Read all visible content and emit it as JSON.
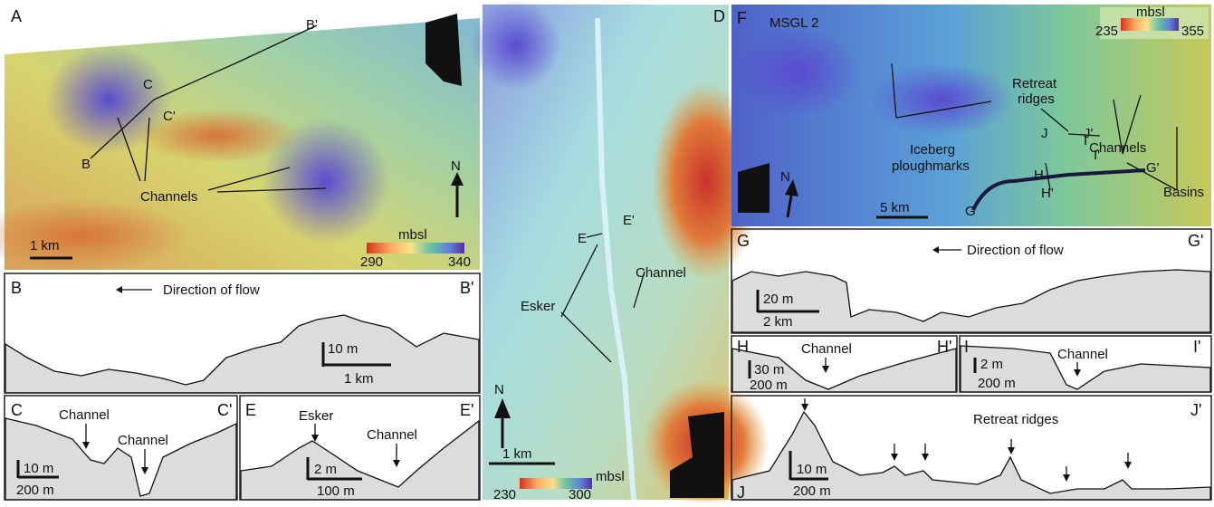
{
  "panel_a": {
    "letter": "A",
    "labels": [
      "B'",
      "C",
      "C'",
      "B",
      "Channels"
    ],
    "north": "N",
    "scale": "1 km",
    "legend": {
      "unit": "mbsl",
      "min": 290,
      "max": 340
    }
  },
  "panel_b": {
    "start": "B",
    "end": "B'",
    "flow": "Direction of flow",
    "vscale": "10 m",
    "hscale": "1 km"
  },
  "panel_c": {
    "start": "C",
    "end": "C'",
    "labels": [
      "Channel",
      "Channel"
    ],
    "vscale": "10 m",
    "hscale": "200 m"
  },
  "panel_e": {
    "start": "E",
    "end": "E'",
    "labels": [
      "Esker",
      "Channel"
    ],
    "vscale": "2 m",
    "hscale": "100 m"
  },
  "panel_d": {
    "letter": "D",
    "labels": [
      "E",
      "E'",
      "Channel",
      "Esker"
    ],
    "north": "N",
    "scale": "1 km",
    "legend": {
      "unit": "mbsl",
      "min": 230,
      "max": 300
    }
  },
  "panel_f": {
    "letter": "F",
    "labels": [
      "MSGL 2",
      "Retreat",
      "ridges",
      "Iceberg",
      "ploughmarks",
      "I",
      "I'",
      "J",
      "J'",
      "Channels",
      "H",
      "H'",
      "G",
      "G'",
      "Basins"
    ],
    "north": "N",
    "scale": "5 km",
    "legend": {
      "unit": "mbsl",
      "min": 235,
      "max": 355
    }
  },
  "panel_g": {
    "start": "G",
    "end": "G'",
    "flow": "Direction of flow",
    "vscale": "20 m",
    "hscale": "2 km"
  },
  "panel_h": {
    "start": "H",
    "end": "H'",
    "label": "Channel",
    "vscale": "30 m",
    "hscale": "200 m"
  },
  "panel_i": {
    "start": "I",
    "end": "I'",
    "label": "Channel",
    "vscale": "2 m",
    "hscale": "200 m"
  },
  "panel_j": {
    "start": "J",
    "end": "J'",
    "label": "Retreat ridges",
    "vscale": "10 m",
    "hscale": "200 m"
  }
}
